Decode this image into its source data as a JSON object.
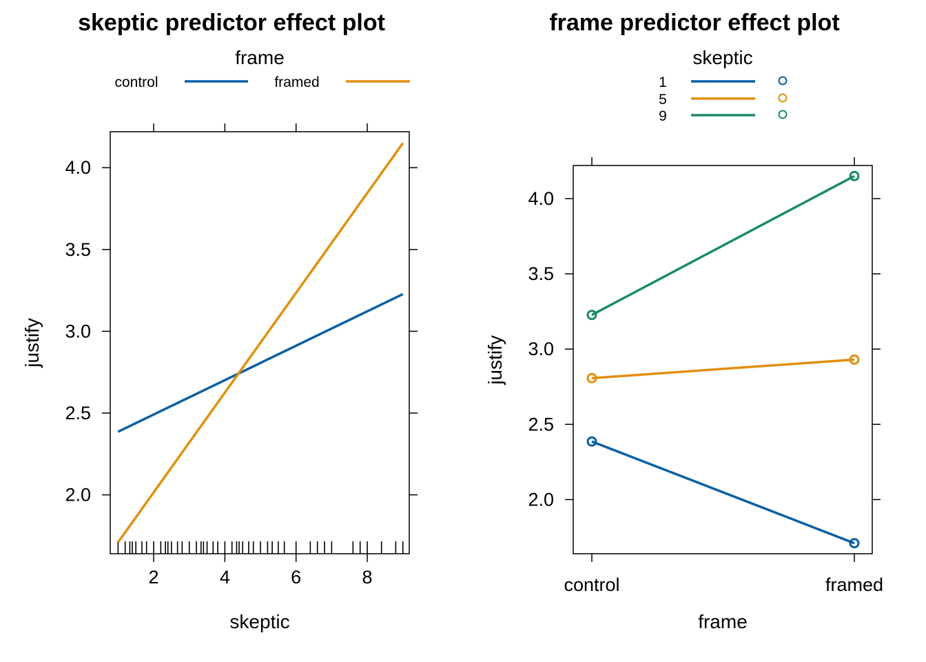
{
  "colors": {
    "blue": "#0a5fa3",
    "orange": "#e0900f",
    "green": "#1a8c60"
  },
  "chart_data": [
    {
      "type": "line",
      "title": "skeptic predictor effect plot",
      "xlabel": "skeptic",
      "ylabel": "justify",
      "xlim": [
        0.78,
        9.18
      ],
      "ylim": [
        1.64,
        4.22
      ],
      "xticks": [
        2,
        4,
        6,
        8
      ],
      "xtick_labels": [
        "2",
        "4",
        "6",
        "8"
      ],
      "yticks": [
        2.0,
        2.5,
        3.0,
        3.5,
        4.0
      ],
      "ytick_labels": [
        "2.0",
        "2.5",
        "3.0",
        "3.5",
        "4.0"
      ],
      "legend_title": "frame",
      "legend_position": "top",
      "series": [
        {
          "name": "control",
          "color": "#0a5fa3",
          "x": [
            1,
            9
          ],
          "y": [
            2.386,
            3.227
          ]
        },
        {
          "name": "framed",
          "color": "#e0900f",
          "x": [
            1,
            9
          ],
          "y": [
            1.71,
            4.15
          ]
        }
      ],
      "rug": [
        1.0,
        1.2,
        1.33,
        1.4,
        1.5,
        1.67,
        1.8,
        2.0,
        2.2,
        2.33,
        2.4,
        2.5,
        2.67,
        2.8,
        3.0,
        3.2,
        3.33,
        3.4,
        3.5,
        3.67,
        3.8,
        4.0,
        4.2,
        4.33,
        4.4,
        4.5,
        4.67,
        4.8,
        5.0,
        5.2,
        5.33,
        5.5,
        5.67,
        6.0,
        6.4,
        6.6,
        6.8,
        7.0,
        7.6,
        7.8,
        8.0,
        8.4,
        8.8,
        9.0
      ]
    },
    {
      "type": "line",
      "title": "frame predictor effect plot",
      "xlabel": "frame",
      "ylabel": "justify",
      "categories": [
        "control",
        "framed"
      ],
      "ylim": [
        1.64,
        4.22
      ],
      "yticks": [
        2.0,
        2.5,
        3.0,
        3.5,
        4.0
      ],
      "ytick_labels": [
        "2.0",
        "2.5",
        "3.0",
        "3.5",
        "4.0"
      ],
      "legend_title": "skeptic",
      "legend_position": "top",
      "markers": "open-circle",
      "series": [
        {
          "name": "1",
          "color": "#0a5fa3",
          "values": [
            2.386,
            1.71
          ]
        },
        {
          "name": "5",
          "color": "#e0900f",
          "values": [
            2.807,
            2.93
          ]
        },
        {
          "name": "9",
          "color": "#1a8c60",
          "values": [
            3.227,
            4.15
          ]
        }
      ]
    }
  ]
}
